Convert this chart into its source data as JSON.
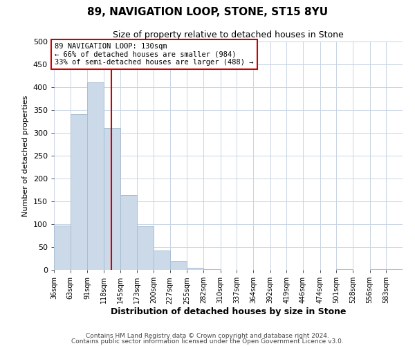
{
  "title": "89, NAVIGATION LOOP, STONE, ST15 8YU",
  "subtitle": "Size of property relative to detached houses in Stone",
  "xlabel": "Distribution of detached houses by size in Stone",
  "ylabel": "Number of detached properties",
  "bar_labels": [
    "36sqm",
    "63sqm",
    "91sqm",
    "118sqm",
    "145sqm",
    "173sqm",
    "200sqm",
    "227sqm",
    "255sqm",
    "282sqm",
    "310sqm",
    "337sqm",
    "364sqm",
    "392sqm",
    "419sqm",
    "446sqm",
    "474sqm",
    "501sqm",
    "528sqm",
    "556sqm",
    "583sqm"
  ],
  "bar_values": [
    97,
    341,
    411,
    311,
    163,
    95,
    42,
    19,
    5,
    2,
    0,
    0,
    0,
    0,
    0,
    0,
    0,
    2,
    0,
    2,
    2
  ],
  "bar_color": "#ccd9e8",
  "bar_edge_color": "#a8bfd4",
  "property_line_x": 130,
  "bin_edges": [
    36,
    63,
    91,
    118,
    145,
    173,
    200,
    227,
    255,
    282,
    310,
    337,
    364,
    392,
    419,
    446,
    474,
    501,
    528,
    556,
    583,
    610
  ],
  "annotation_text": "89 NAVIGATION LOOP: 130sqm\n← 66% of detached houses are smaller (984)\n33% of semi-detached houses are larger (488) →",
  "annotation_box_color": "#ffffff",
  "annotation_box_edge": "#cc0000",
  "vline_color": "#cc0000",
  "ylim": [
    0,
    500
  ],
  "yticks": [
    0,
    50,
    100,
    150,
    200,
    250,
    300,
    350,
    400,
    450,
    500
  ],
  "footer1": "Contains HM Land Registry data © Crown copyright and database right 2024.",
  "footer2": "Contains public sector information licensed under the Open Government Licence v3.0.",
  "background_color": "#ffffff",
  "grid_color": "#c8d4e4"
}
